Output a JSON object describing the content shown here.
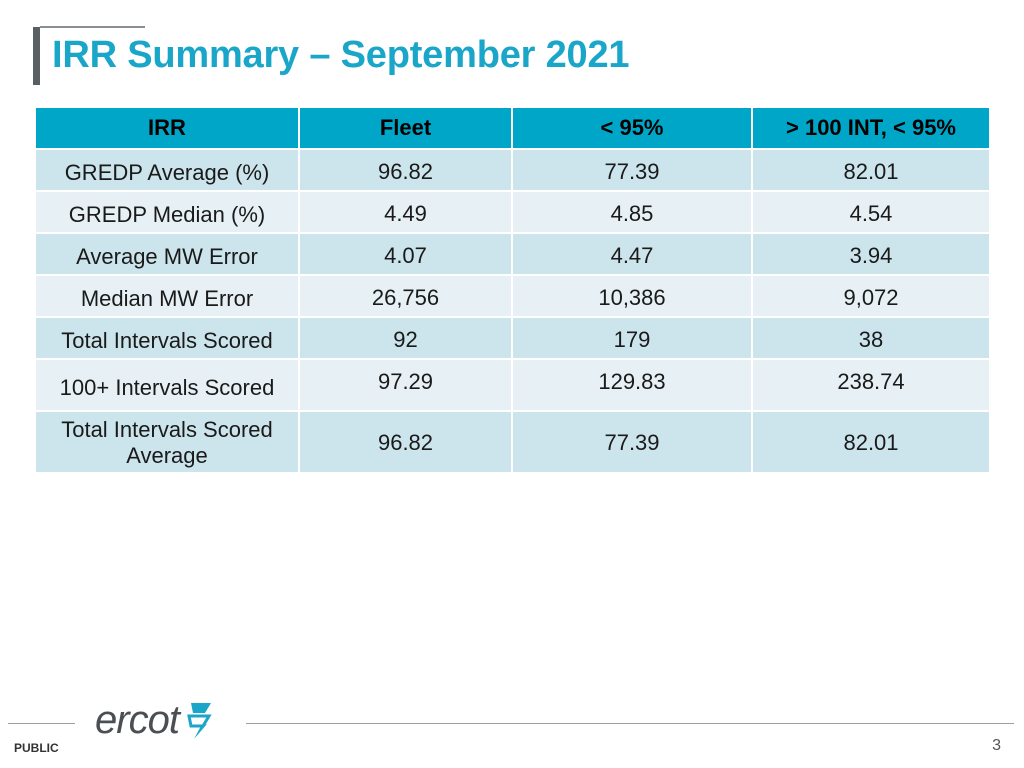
{
  "slide": {
    "title": "IRR Summary – September 2021",
    "footer": {
      "brand": "ercot",
      "classification": "PUBLIC",
      "page_number": "3"
    },
    "colors": {
      "accent": "#1aa6c8",
      "header_fill": "#00a6c8",
      "row_odd": "#cce4ec",
      "row_even": "#e7f1f5",
      "logo_mark": "#1aa6c8"
    },
    "icons": {
      "logo": "ercot-bolt-logo-icon"
    }
  },
  "table": {
    "headers": [
      "IRR",
      "Fleet",
      "< 95%",
      "> 100 INT, < 95%"
    ],
    "rows": [
      {
        "label": "GREDP Average (%)",
        "values": [
          "96.82",
          "77.39",
          "82.01"
        ]
      },
      {
        "label": "GREDP Median (%)",
        "values": [
          "4.49",
          "4.85",
          "4.54"
        ]
      },
      {
        "label": "Average MW Error",
        "values": [
          "4.07",
          "4.47",
          "3.94"
        ]
      },
      {
        "label": "Median MW Error",
        "values": [
          "26,756",
          "10,386",
          "9,072"
        ]
      },
      {
        "label": "Total Intervals Scored",
        "values": [
          "92",
          "179",
          "38"
        ]
      },
      {
        "label": "100+ Intervals Scored",
        "values": [
          "97.29",
          "129.83",
          "238.74"
        ]
      },
      {
        "label": "Total Intervals Scored Average",
        "values": [
          "96.82",
          "77.39",
          "82.01"
        ]
      }
    ]
  }
}
